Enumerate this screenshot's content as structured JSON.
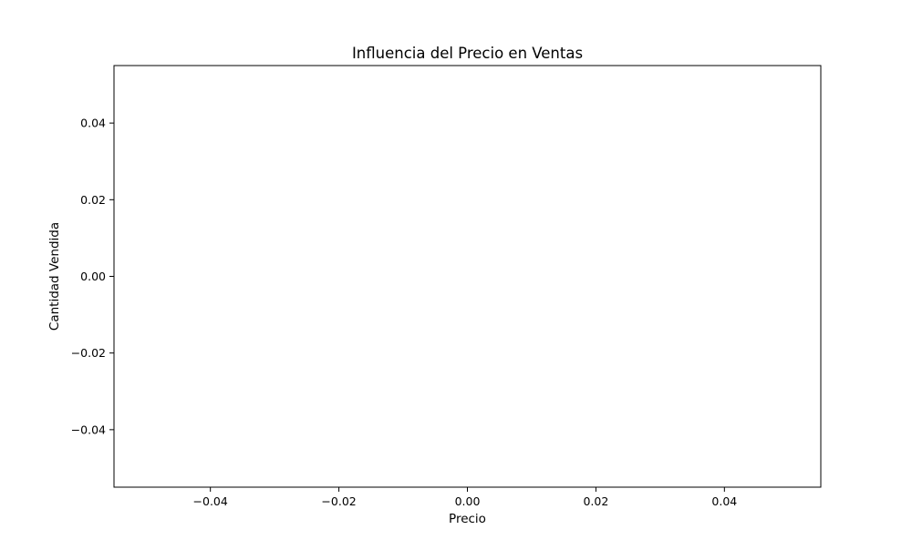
{
  "chart_data": {
    "type": "scatter",
    "title": "Influencia del Precio en Ventas",
    "xlabel": "Precio",
    "ylabel": "Cantidad Vendida",
    "x": [],
    "y": [],
    "xlim": [
      -0.055,
      0.055
    ],
    "ylim": [
      -0.055,
      0.055
    ],
    "xticks": [
      -0.04,
      -0.02,
      0.0,
      0.02,
      0.04
    ],
    "yticks": [
      -0.04,
      -0.02,
      0.0,
      0.02,
      0.04
    ],
    "xtick_labels": [
      "−0.04",
      "−0.02",
      "0.00",
      "0.02",
      "0.04"
    ],
    "ytick_labels": [
      "−0.04",
      "−0.02",
      "0.00",
      "0.02",
      "0.04"
    ],
    "grid": false,
    "legend": false
  }
}
